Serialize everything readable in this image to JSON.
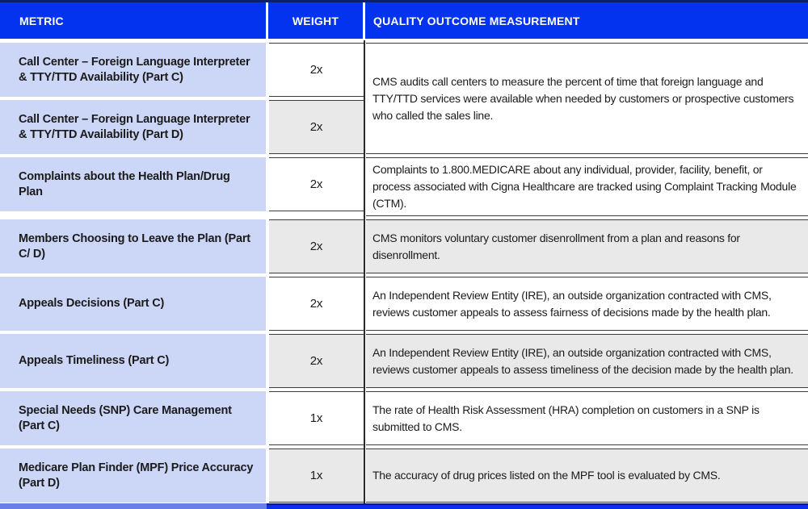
{
  "colors": {
    "header-blue": "#0433f0",
    "header-top-edge": "#121d72",
    "metric-lavender": "#ccd6f7",
    "shade-gray": "#e9e9e9",
    "shade-white": "#ffffff",
    "cell-border": "#3b3b3b",
    "divider": "#2a2a2a",
    "bottom-bar-left": "#6b7fe8",
    "bottom-bar-right": "#0830e8",
    "text": "#1b1b1b"
  },
  "table": {
    "columns": [
      "METRIC",
      "WEIGHT",
      "QUALITY OUTCOME MEASUREMENT"
    ],
    "groups": [
      {
        "metrics": [
          {
            "label": "Call Center – Foreign Language Interpreter & TTY/TTD Availability (Part C)",
            "weight": "2x"
          },
          {
            "label": "Call Center – Foreign Language Interpreter & TTY/TTD Availability (Part D)",
            "weight": "2x"
          }
        ],
        "measurement": "CMS audits call centers to measure the percent of time that foreign language and TTY/TTD services were available when needed by customers or prospective customers who called the sales line."
      },
      {
        "metrics": [
          {
            "label": "Complaints about the Health Plan/Drug Plan",
            "weight": "2x"
          }
        ],
        "measurement": "Complaints to 1.800.MEDICARE about any individual, provider, facility, benefit, or process associated with Cigna Healthcare are tracked using Complaint Tracking Module (CTM)."
      },
      {
        "metrics": [
          {
            "label": "Members Choosing to Leave the Plan (Part C/ D)",
            "weight": "2x"
          }
        ],
        "measurement": "CMS monitors voluntary customer disenrollment from a plan and reasons for disenrollment."
      },
      {
        "metrics": [
          {
            "label": "Appeals Decisions (Part C)",
            "weight": "2x"
          }
        ],
        "measurement": "An Independent Review Entity (IRE), an outside organization contracted with CMS, reviews customer appeals to assess fairness of decisions made by the health plan."
      },
      {
        "metrics": [
          {
            "label": "Appeals Timeliness (Part C)",
            "weight": "2x"
          }
        ],
        "measurement": "An Independent Review Entity (IRE), an outside organization contracted with CMS, reviews customer appeals to assess timeliness of the decision made by the health plan."
      },
      {
        "metrics": [
          {
            "label": "Special Needs (SNP) Care Management (Part C)",
            "weight": "1x"
          }
        ],
        "measurement": "The rate of Health Risk Assessment (HRA) completion on customers in a SNP is submitted to CMS."
      },
      {
        "metrics": [
          {
            "label": "Medicare Plan Finder (MPF) Price Accuracy (Part D)",
            "weight": "1x"
          }
        ],
        "measurement": "The accuracy of drug prices listed on the MPF tool is evaluated by CMS."
      }
    ]
  }
}
